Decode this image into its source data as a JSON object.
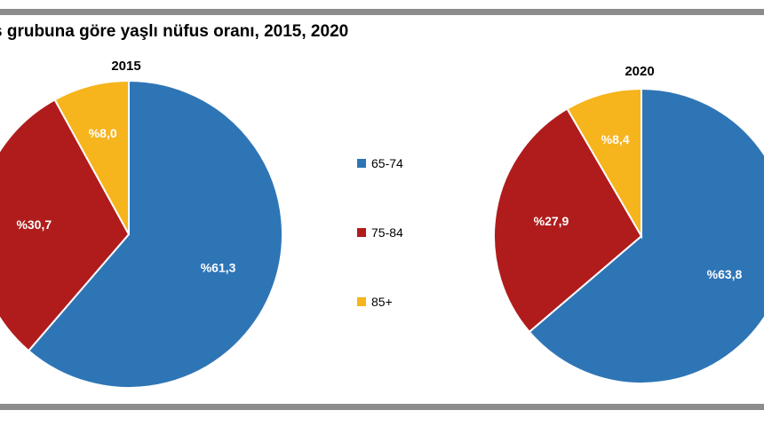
{
  "figure": {
    "title": "s grubuna göre yaşlı nüfus oranı, 2015, 2020"
  },
  "chart_data": {
    "type": "pie",
    "legend": {
      "placement": "center",
      "entries": [
        {
          "label": "65-74",
          "color": "#2e75b6"
        },
        {
          "label": "75-84",
          "color": "#b01c1c"
        },
        {
          "label": "85+",
          "color": "#f6b41d"
        }
      ]
    },
    "charts": [
      {
        "title": "2015",
        "slices": [
          {
            "category": "65-74",
            "value": 61.3,
            "label": "%61,3",
            "color": "#2e75b6"
          },
          {
            "category": "75-84",
            "value": 30.7,
            "label": "%30,7",
            "color": "#b01c1c"
          },
          {
            "category": "85+",
            "value": 8.0,
            "label": "%8,0",
            "color": "#f6b41d"
          }
        ]
      },
      {
        "title": "2020",
        "slices": [
          {
            "category": "65-74",
            "value": 63.8,
            "label": "%63,8",
            "color": "#2e75b6"
          },
          {
            "category": "75-84",
            "value": 27.9,
            "label": "%27,9",
            "color": "#b01c1c"
          },
          {
            "category": "85+",
            "value": 8.4,
            "label": "%8,4",
            "color": "#f6b41d"
          }
        ]
      }
    ]
  }
}
